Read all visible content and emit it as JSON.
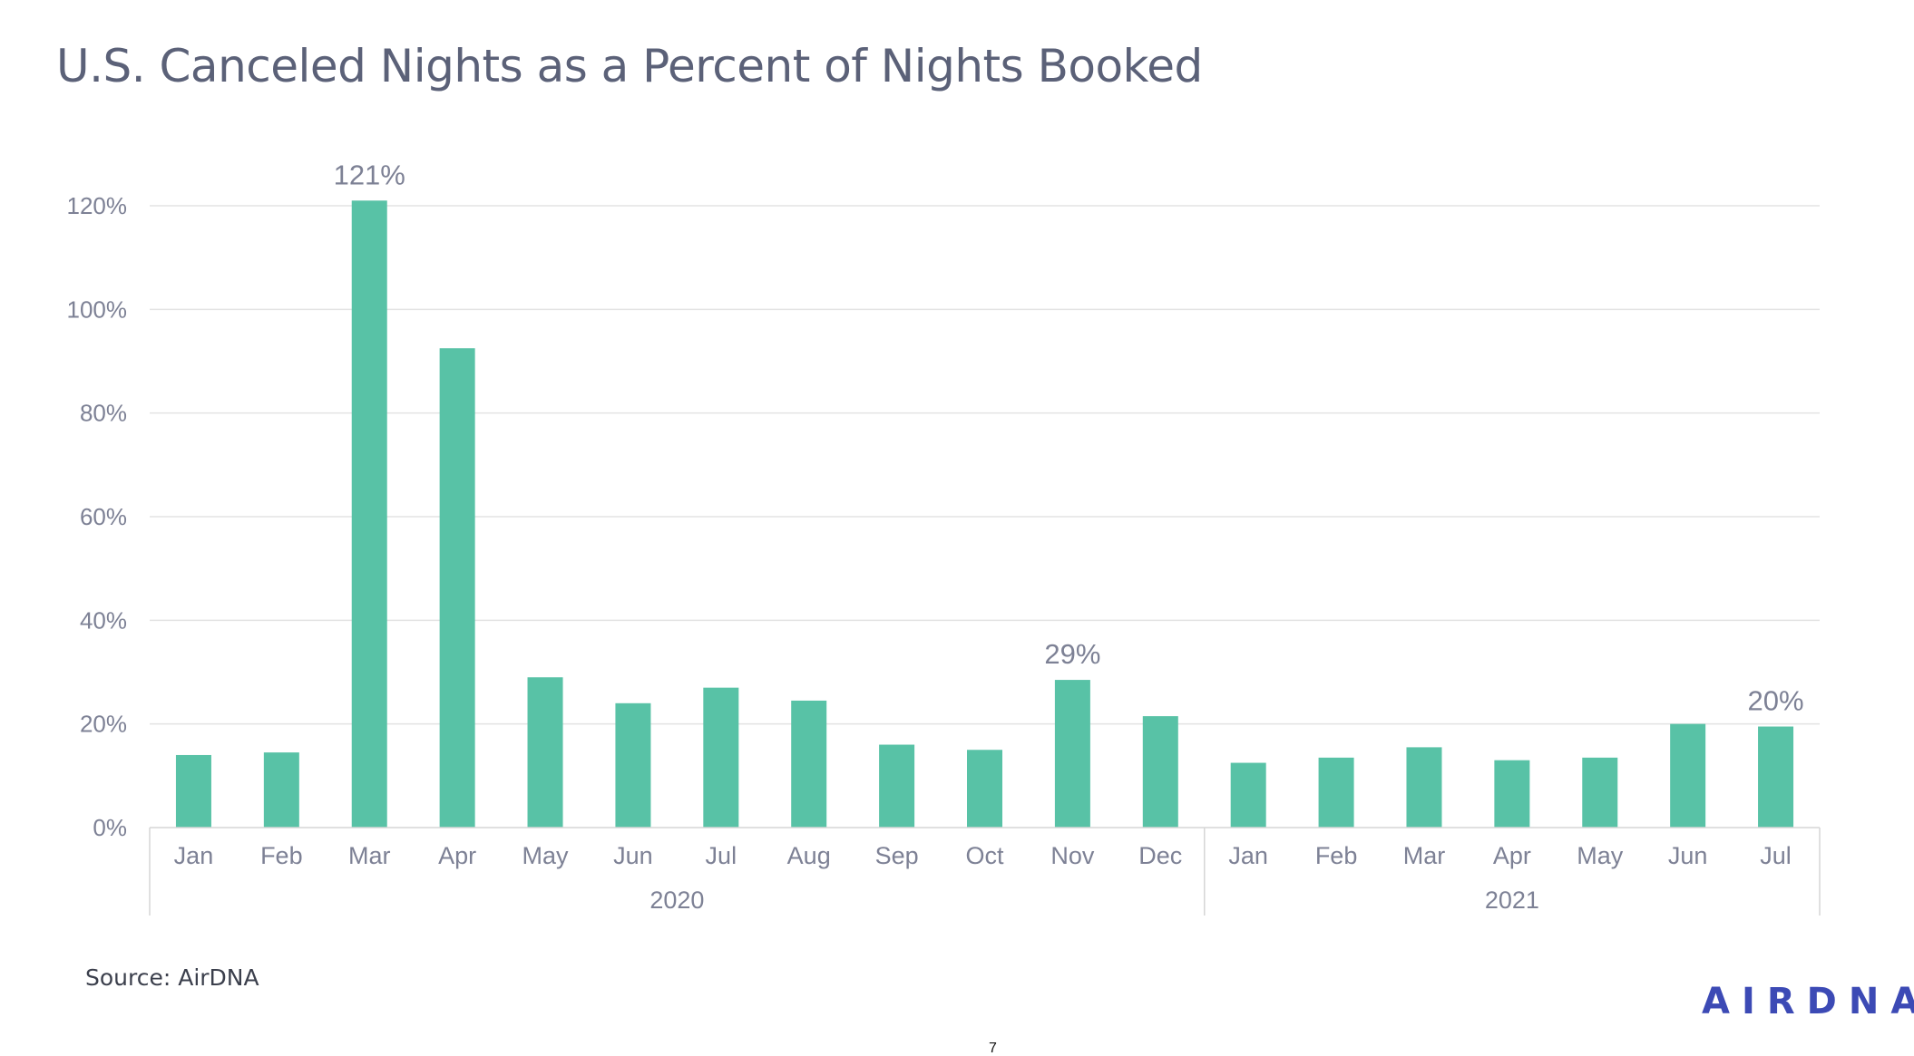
{
  "slide": {
    "title": "U.S. Canceled Nights as a Percent of Nights Booked",
    "source": "Source: AirDNA",
    "logo_text": "AIRDNA",
    "page_number": "7"
  },
  "colors": {
    "bar": "#58c2a6",
    "text_gray": "#7d8195",
    "grid": "#e3e3e3",
    "title": "#5b6178",
    "logo": "#3c4ab5"
  },
  "chart_data": {
    "type": "bar",
    "title": "U.S. Canceled Nights as a Percent of Nights Booked",
    "xlabel": "",
    "ylabel": "",
    "ylim": [
      0,
      120
    ],
    "y_ticks": [
      0,
      20,
      40,
      60,
      80,
      100,
      120
    ],
    "y_tick_labels": [
      "0%",
      "20%",
      "40%",
      "60%",
      "80%",
      "100%",
      "120%"
    ],
    "grid": true,
    "legend": "none",
    "categories": [
      "Jan",
      "Feb",
      "Mar",
      "Apr",
      "May",
      "Jun",
      "Jul",
      "Aug",
      "Sep",
      "Oct",
      "Nov",
      "Dec",
      "Jan",
      "Feb",
      "Mar",
      "Apr",
      "May",
      "Jun",
      "Jul"
    ],
    "category_groups": [
      {
        "label": "2020",
        "count": 12
      },
      {
        "label": "2021",
        "count": 7
      }
    ],
    "values": [
      14,
      14.5,
      121,
      92.5,
      29,
      24,
      27,
      24.5,
      16,
      15,
      28.5,
      21.5,
      12.5,
      13.5,
      15.5,
      13,
      13.5,
      20,
      19.5
    ],
    "data_labels": [
      {
        "index": 2,
        "text": "121%"
      },
      {
        "index": 10,
        "text": "29%"
      },
      {
        "index": 18,
        "text": "20%"
      }
    ]
  }
}
